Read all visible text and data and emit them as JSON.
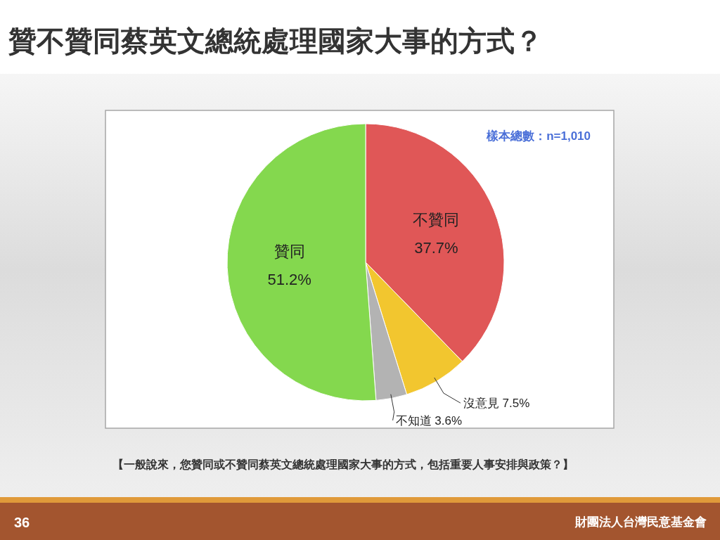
{
  "chart_data": {
    "type": "pie",
    "title": "贊不贊同蔡英文總統處理國家大事的方式？",
    "categories": [
      "不贊同",
      "沒意見",
      "不知道",
      "贊同"
    ],
    "values": [
      37.7,
      7.5,
      3.6,
      51.2
    ],
    "value_labels": [
      "37.7%",
      "7.5%",
      "3.6%",
      "51.2%"
    ],
    "colors": [
      "#e05757",
      "#f2c62f",
      "#b3b3b3",
      "#84d84e"
    ],
    "annotations": [
      "樣本總數：n=1,010",
      "【一般說來，您贊同或不贊同蔡英文總統處理國家大事的方式，包括重要人事安排與政策？】",
      "36",
      "財團法人台灣民意基金會"
    ]
  }
}
